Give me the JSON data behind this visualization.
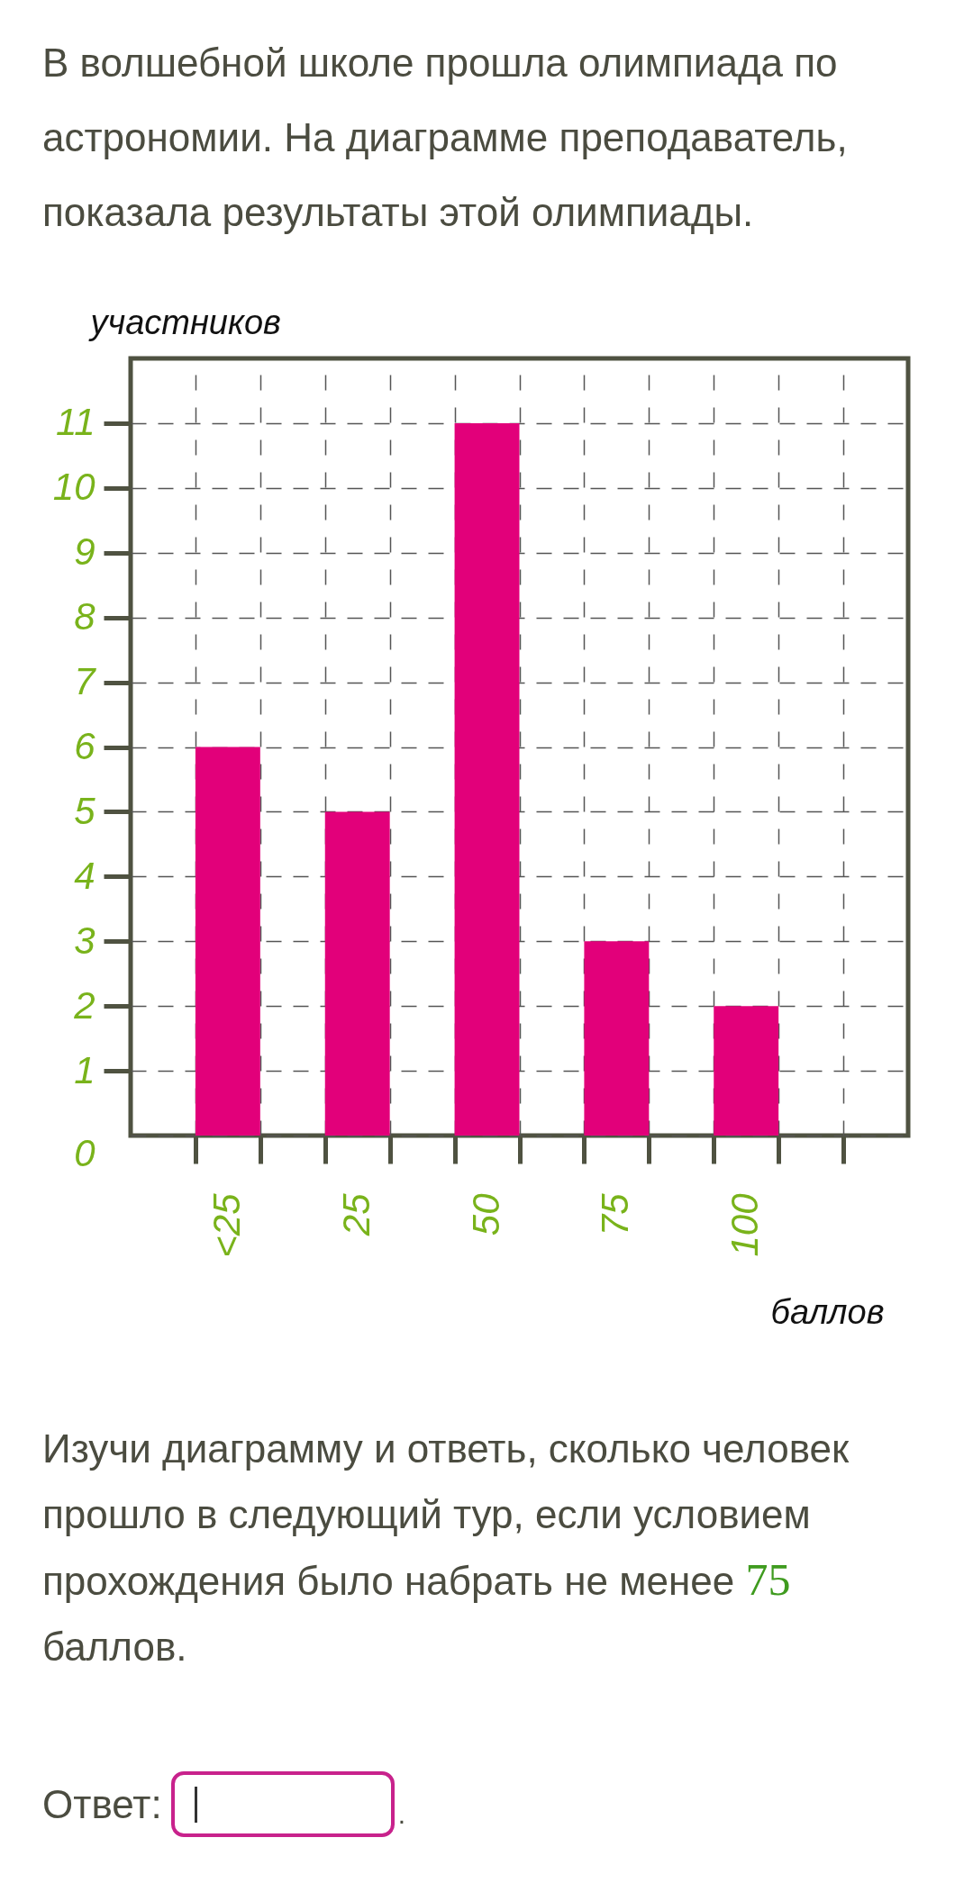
{
  "chart_data": {
    "type": "bar",
    "title": "В волшебной школе прошла олимпиада по астрономии. На диаграмме преподаватель, показала результаты этой олимпиады.",
    "xlabel": "баллов",
    "ylabel": "участников",
    "categories": [
      "<25",
      "25",
      "50",
      "75",
      "100"
    ],
    "values": [
      6,
      5,
      11,
      3,
      2
    ],
    "color": "#e2007a",
    "ylim": [
      0,
      12
    ],
    "yticks": [
      0,
      1,
      2,
      3,
      4,
      5,
      6,
      7,
      8,
      9,
      10,
      11
    ],
    "grid": true,
    "annotations": [
      "Изучи диаграмму и ответь, сколько человек прошло в следующий тур, если условием",
      "прохождения было набрать не менее",
      "75",
      "баллов.",
      "Ответ:",
      "."
    ]
  }
}
